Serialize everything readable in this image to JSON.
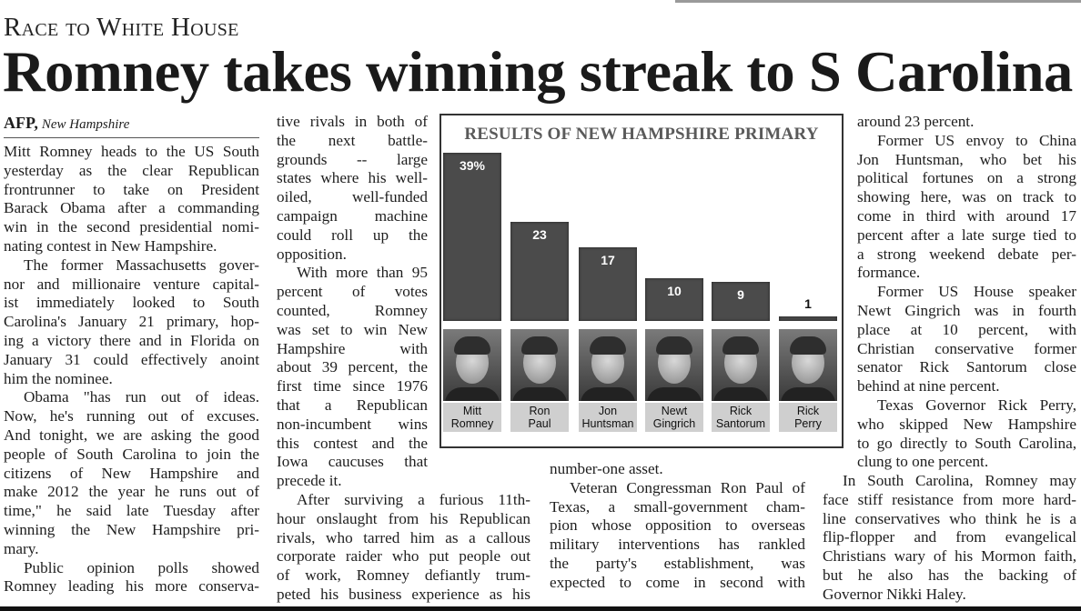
{
  "kicker": "Race to White House",
  "headline": "Romney takes winning streak to S Carolina",
  "byline": {
    "agency": "AFP,",
    "dateline": "New Hampshire"
  },
  "body": {
    "col1": [
      {
        "indent": false,
        "ends": true,
        "lines": [
          "Mitt Romney heads to the US South",
          "yesterday as the clear Republican",
          "frontrunner to take on President",
          "Barack Obama after a commanding",
          "win in the second presidential nomi-",
          "nating contest in New Hampshire."
        ]
      },
      {
        "indent": true,
        "ends": true,
        "lines": [
          "The former Massachusetts gover-",
          "nor and millionaire venture capital-",
          "ist immediately looked to South",
          "Carolina's January 21 primary, hop-",
          "ing a victory there and in Florida on",
          "January 31 could effectively anoint",
          "him the nominee."
        ]
      },
      {
        "indent": true,
        "ends": true,
        "lines": [
          "Obama \"has run out of ideas.",
          "Now, he's running out of excuses.",
          "And tonight, we are asking the good",
          "people of South Carolina to join the",
          "citizens of New Hampshire and",
          "make 2012 the year he runs out of",
          "time,\" he said late Tuesday after",
          "winning the New Hampshire pri-",
          "mary."
        ]
      },
      {
        "indent": true,
        "ends": false,
        "lines": [
          "Public opinion polls showed",
          "Romney leading his more conserva-"
        ]
      }
    ],
    "col2a": [
      {
        "indent": false,
        "ends": true,
        "lines": [
          "tive rivals in both of",
          "the next battle-",
          "grounds -- large",
          "states where his well-",
          "oiled, well-funded",
          "campaign machine",
          "could roll up the",
          "opposition."
        ]
      },
      {
        "indent": true,
        "ends": true,
        "lines": [
          "With more than 95",
          "percent of votes",
          "counted, Romney",
          "was set to win New",
          "Hampshire with",
          "about 39 percent, the",
          "first time since 1976",
          "that a Republican",
          "non-incumbent wins",
          "this contest and the",
          "Iowa caucuses that",
          "precede it."
        ]
      }
    ],
    "col2b": [
      {
        "indent": true,
        "ends": false,
        "lines": [
          "After surviving a furious 11th-",
          "hour onslaught from his Republican",
          "rivals, who tarred him as a callous",
          "corporate raider who put people out",
          "of work, Romney defiantly trum-",
          "peted his business experience as his"
        ]
      }
    ],
    "col3": [
      {
        "indent": false,
        "ends": true,
        "lines": [
          "number-one asset."
        ]
      },
      {
        "indent": true,
        "ends": false,
        "lines": [
          "Veteran Congressman Ron Paul of",
          "Texas, a small-government cham-",
          "pion whose opposition to overseas",
          "military interventions has rankled",
          "the party's establishment, was",
          "expected to come in second with"
        ]
      }
    ],
    "col4a": [
      {
        "indent": false,
        "ends": true,
        "lines": [
          "around 23 percent."
        ]
      },
      {
        "indent": true,
        "ends": true,
        "lines": [
          "Former US envoy to China",
          "Jon Huntsman, who bet his",
          "political fortunes on a strong",
          "showing here, was on track to",
          "come in third with around 17",
          "percent after a late surge tied to",
          "a strong weekend debate per-",
          "formance."
        ]
      },
      {
        "indent": true,
        "ends": true,
        "lines": [
          "Former US House speaker",
          "Newt Gingrich was in fourth",
          "place at 10 percent, with",
          "Christian conservative former",
          "senator Rick Santorum close",
          "behind at nine percent."
        ]
      },
      {
        "indent": true,
        "ends": true,
        "lines": [
          "Texas Governor Rick Perry,",
          "who skipped New Hampshire",
          "to go directly to South Carolina,",
          "clung to one percent."
        ]
      }
    ],
    "col4b": [
      {
        "indent": true,
        "ends": true,
        "lines": [
          "In South Carolina, Romney may",
          "face stiff resistance from more hard-",
          "line conservatives who think he is a",
          "flip-flopper and from evangelical",
          "Christians wary of his Mormon faith,",
          "but he also has the backing of",
          "Governor Nikki Haley."
        ]
      }
    ]
  },
  "chart_data": {
    "type": "bar",
    "title": "RESULTS OF NEW HAMPSHIRE PRIMARY",
    "categories": [
      "Mitt Romney",
      "Ron Paul",
      "Jon Huntsman",
      "Newt Gingrich",
      "Rick Santorum",
      "Rick Perry"
    ],
    "name_lines": [
      [
        "Mitt",
        "Romney"
      ],
      [
        "Ron",
        "Paul"
      ],
      [
        "Jon",
        "Huntsman"
      ],
      [
        "Newt",
        "Gingrich"
      ],
      [
        "Rick",
        "Santorum"
      ],
      [
        "Rick",
        "Perry"
      ]
    ],
    "values": [
      39,
      23,
      17,
      10,
      9,
      1
    ],
    "data_labels": [
      "39%",
      "23",
      "17",
      "10",
      "9",
      "1"
    ],
    "unit": "percent",
    "bar_color": "#4b4b4b",
    "grid": false,
    "legend": "none"
  }
}
